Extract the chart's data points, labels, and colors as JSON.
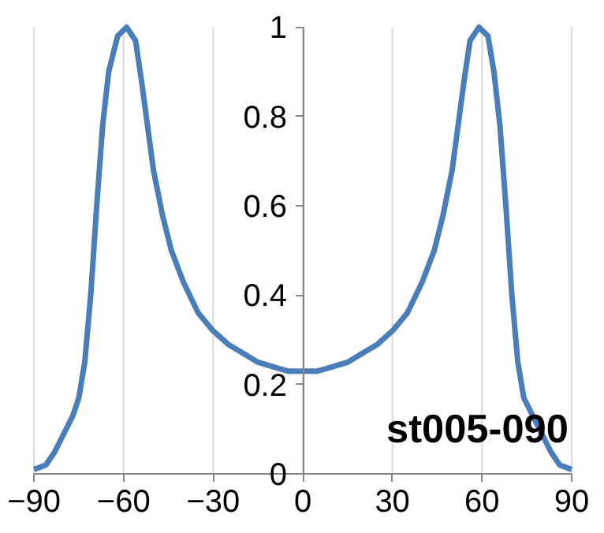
{
  "chart_data": {
    "type": "line",
    "x": [
      -90,
      -86,
      -83,
      -80,
      -77,
      -75,
      -73,
      -71,
      -69,
      -67,
      -65,
      -62,
      -59,
      -56,
      -54,
      -52,
      -50,
      -47,
      -44,
      -40,
      -35,
      -30,
      -25,
      -20,
      -15,
      -10,
      -5,
      0,
      5,
      10,
      15,
      20,
      25,
      30,
      35,
      40,
      44,
      47,
      50,
      52,
      54,
      56,
      59,
      62,
      64,
      66,
      68,
      70,
      72,
      74,
      77,
      80,
      83,
      86,
      90
    ],
    "series": [
      {
        "color": "#4a7ebb",
        "values": [
          0.01,
          0.02,
          0.05,
          0.09,
          0.13,
          0.17,
          0.25,
          0.4,
          0.6,
          0.78,
          0.9,
          0.98,
          1.0,
          0.97,
          0.88,
          0.78,
          0.68,
          0.58,
          0.5,
          0.43,
          0.36,
          0.32,
          0.29,
          0.27,
          0.25,
          0.24,
          0.23,
          0.23,
          0.23,
          0.24,
          0.25,
          0.27,
          0.29,
          0.32,
          0.36,
          0.43,
          0.5,
          0.58,
          0.68,
          0.78,
          0.88,
          0.97,
          1.0,
          0.98,
          0.9,
          0.78,
          0.6,
          0.4,
          0.25,
          0.17,
          0.13,
          0.09,
          0.05,
          0.02,
          0.01
        ]
      }
    ],
    "xlim": [
      -90,
      90
    ],
    "ylim": [
      0,
      1
    ],
    "xticks": [
      -90,
      -60,
      -30,
      0,
      30,
      60,
      90
    ],
    "yticks": [
      0,
      0.2,
      0.4,
      0.6,
      0.8,
      1
    ],
    "grid": "x",
    "marker": "none",
    "line_style": "solid",
    "annotations": [
      "st005-090"
    ]
  }
}
